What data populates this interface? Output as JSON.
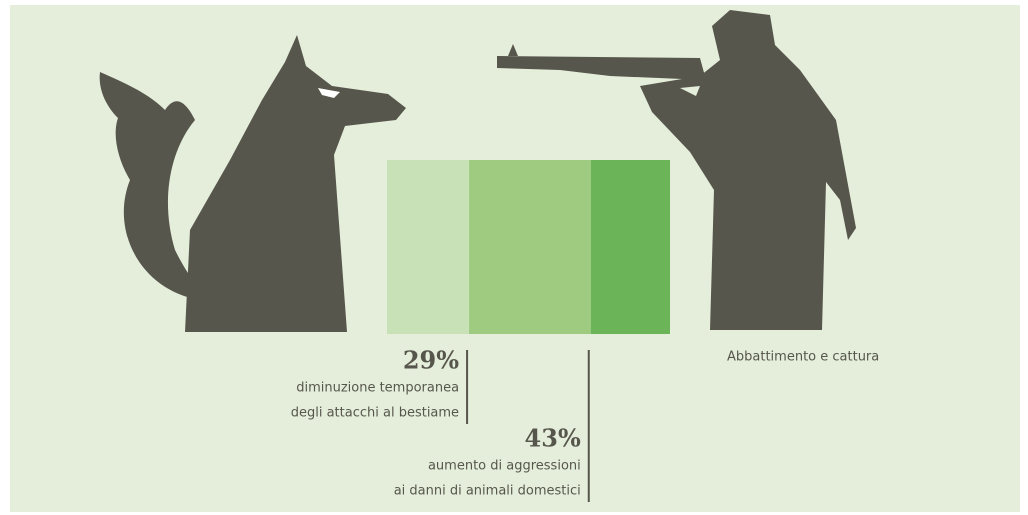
{
  "chart_data": {
    "type": "stacked-bar",
    "caption": "Abbattimento e cattura",
    "xlim": [
      0,
      100
    ],
    "values": [
      29,
      43,
      28
    ],
    "value_labels": [
      "29%",
      "43%",
      null
    ],
    "colors": [
      "#c9e1b6",
      "#9ecb80",
      "#6cb458"
    ],
    "notes": [
      [
        "diminuzione temporanea",
        "degli attacchi al bestiame"
      ],
      [
        "aumento di aggressioni",
        "ai danni di animali domestici"
      ],
      null
    ]
  }
}
